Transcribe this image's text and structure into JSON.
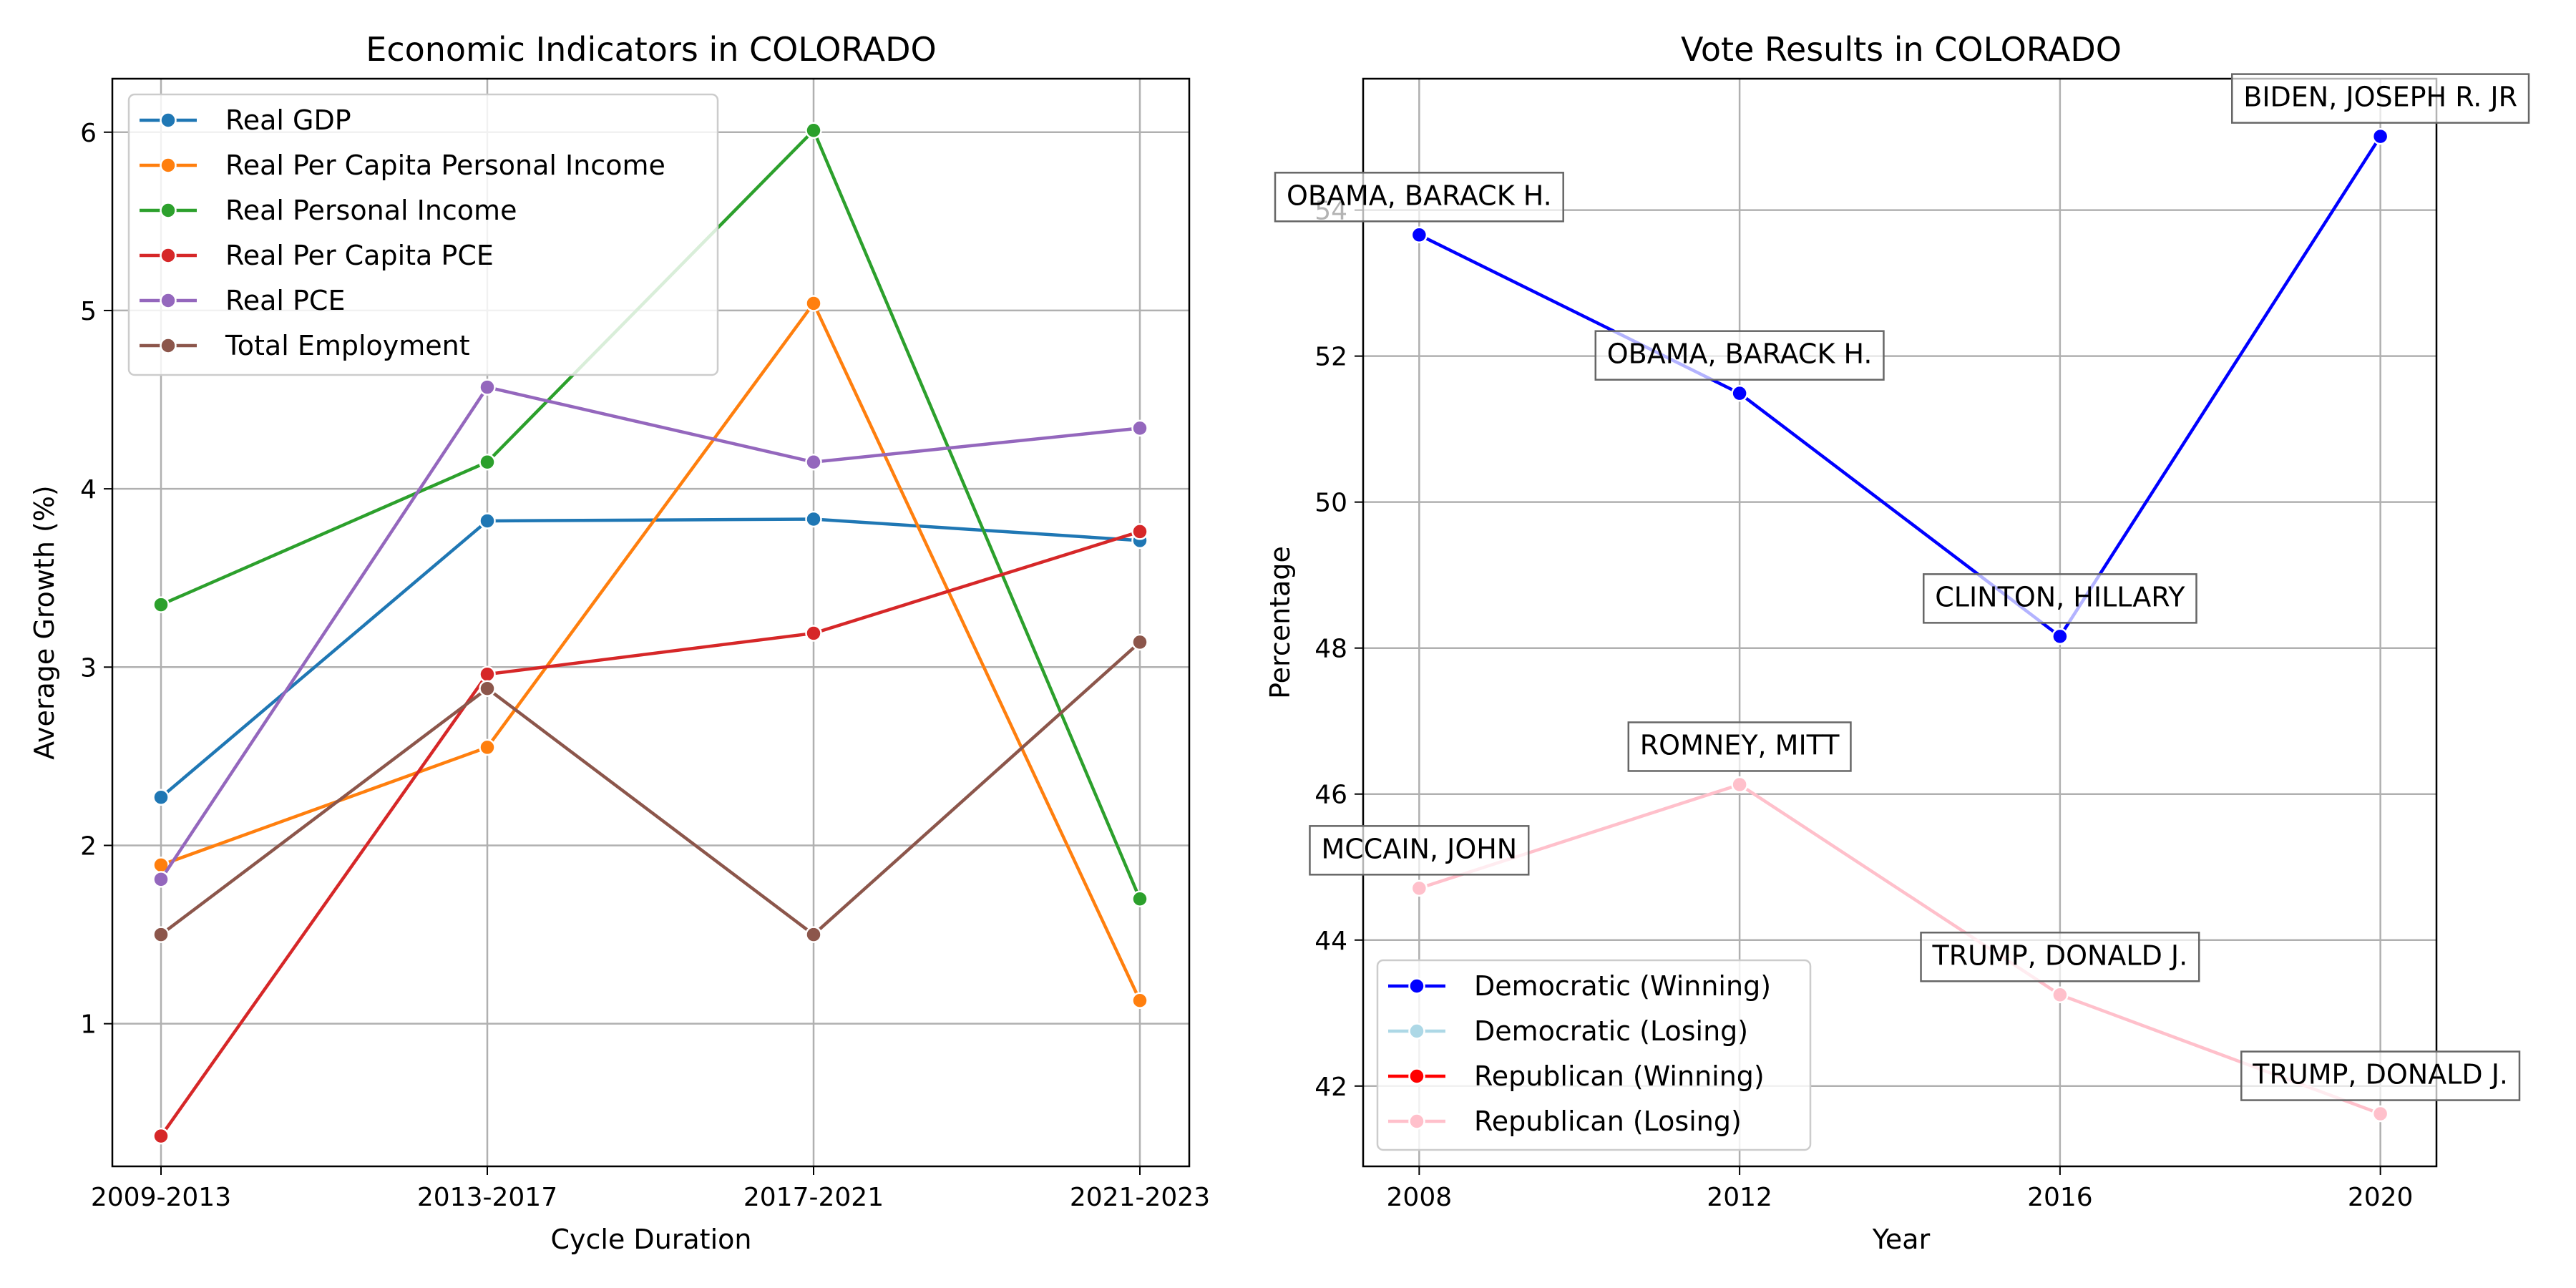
{
  "chart_data": [
    {
      "type": "line",
      "title": "Economic Indicators in COLORADO",
      "xlabel": "Cycle Duration",
      "ylabel": "Average Growth (%)",
      "categories": [
        "2009-2013",
        "2013-2017",
        "2017-2021",
        "2021-2023"
      ],
      "yticks": [
        1,
        2,
        3,
        4,
        5,
        6
      ],
      "ylim": [
        0.2,
        6.3
      ],
      "grid": true,
      "legend_position": "top-left",
      "series": [
        {
          "name": "Real GDP",
          "color": "#1f77b4",
          "values": [
            2.27,
            3.82,
            3.83,
            3.71
          ]
        },
        {
          "name": "Real Per Capita Personal Income",
          "color": "#ff7f0e",
          "values": [
            1.89,
            2.55,
            5.04,
            1.13
          ]
        },
        {
          "name": "Real Personal Income",
          "color": "#2ca02c",
          "values": [
            3.35,
            4.15,
            6.01,
            1.7
          ]
        },
        {
          "name": "Real Per Capita PCE",
          "color": "#d62728",
          "values": [
            0.37,
            2.96,
            3.19,
            3.76
          ]
        },
        {
          "name": "Real PCE",
          "color": "#9467bd",
          "values": [
            1.81,
            4.57,
            4.15,
            4.34
          ]
        },
        {
          "name": "Total Employment",
          "color": "#8c564b",
          "values": [
            1.5,
            2.88,
            1.5,
            3.14
          ]
        }
      ]
    },
    {
      "type": "line",
      "title": "Vote Results in COLORADO",
      "xlabel": "Year",
      "ylabel": "Percentage",
      "x": [
        2008,
        2012,
        2016,
        2020
      ],
      "xticks": [
        "2008",
        "2012",
        "2016",
        "2020"
      ],
      "yticks": [
        42,
        44,
        46,
        48,
        50,
        52,
        54
      ],
      "xlim": [
        2007.3,
        2020.7
      ],
      "ylim": [
        40.9,
        55.8
      ],
      "grid": true,
      "legend_position": "bottom-left",
      "legend": [
        {
          "name": "Democratic (Winning)",
          "color": "#0000ff"
        },
        {
          "name": "Democratic (Losing)",
          "color": "#add8e6"
        },
        {
          "name": "Republican (Winning)",
          "color": "#ff0000"
        },
        {
          "name": "Republican (Losing)",
          "color": "#ffc0cb"
        }
      ],
      "points": [
        {
          "year": 2008,
          "value": 53.66,
          "candidate": "OBAMA, BARACK H.",
          "party": "Democratic",
          "outcome": "Winning"
        },
        {
          "year": 2012,
          "value": 51.49,
          "candidate": "OBAMA, BARACK H.",
          "party": "Democratic",
          "outcome": "Winning"
        },
        {
          "year": 2016,
          "value": 48.16,
          "candidate": "CLINTON, HILLARY",
          "party": "Democratic",
          "outcome": "Winning"
        },
        {
          "year": 2020,
          "value": 55.01,
          "candidate": "BIDEN, JOSEPH R. JR",
          "party": "Democratic",
          "outcome": "Winning"
        },
        {
          "year": 2008,
          "value": 44.71,
          "candidate": "MCCAIN, JOHN",
          "party": "Republican",
          "outcome": "Losing"
        },
        {
          "year": 2012,
          "value": 46.13,
          "candidate": "ROMNEY, MITT",
          "party": "Republican",
          "outcome": "Losing"
        },
        {
          "year": 2016,
          "value": 43.25,
          "candidate": "TRUMP, DONALD J.",
          "party": "Republican",
          "outcome": "Losing"
        },
        {
          "year": 2020,
          "value": 41.62,
          "candidate": "TRUMP, DONALD J.",
          "party": "Republican",
          "outcome": "Losing"
        }
      ],
      "series_colors": {
        "Democratic": "#0000ff",
        "Republican": "#ffc0cb"
      }
    }
  ]
}
